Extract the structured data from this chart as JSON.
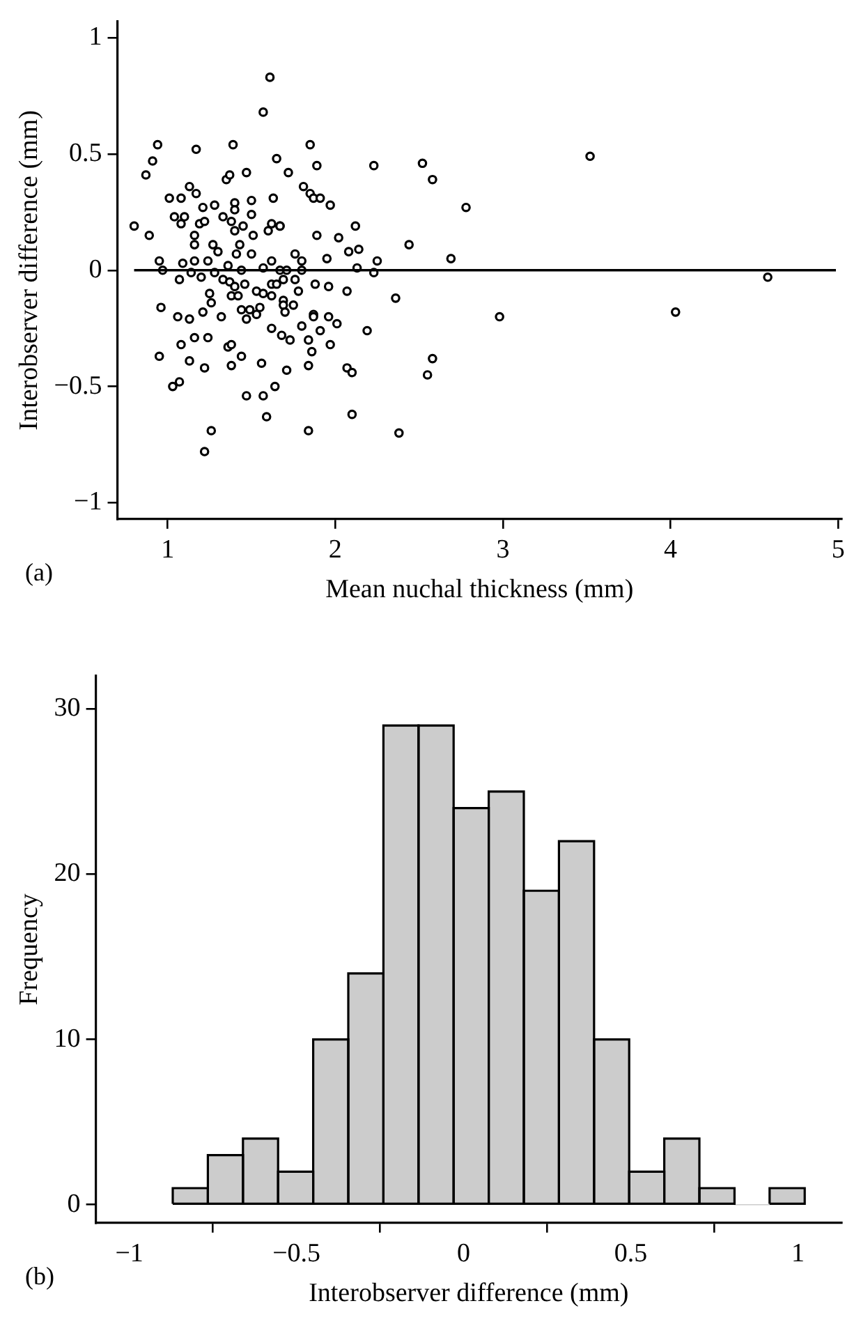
{
  "chart_data": [
    {
      "type": "scatter",
      "xlabel": "Mean nuchal thickness (mm)",
      "ylabel": "Interobserver difference (mm)",
      "annotations": [
        "(a)"
      ],
      "marker": "circle",
      "color": "#000000",
      "xlim": [
        0.7,
        5.02
      ],
      "ylim": [
        -1.07,
        1.07
      ],
      "xticks": [
        1,
        2,
        3,
        4,
        5
      ],
      "yticks": [
        -1,
        -0.5,
        0,
        0.5,
        1
      ],
      "ref_lines": [
        {
          "axis": "y",
          "value": 0,
          "color": "#000000"
        }
      ],
      "x": [
        0.8,
        0.89,
        0.87,
        0.91,
        0.94,
        0.95,
        0.97,
        0.96,
        0.95,
        1.03,
        1.07,
        1.01,
        1.04,
        1.08,
        1.1,
        1.08,
        1.07,
        1.06,
        1.08,
        1.09,
        1.13,
        1.17,
        1.17,
        1.13,
        1.13,
        1.16,
        1.16,
        1.14,
        1.16,
        1.16,
        1.21,
        1.19,
        1.22,
        1.2,
        1.21,
        1.24,
        1.22,
        1.26,
        1.22,
        1.24,
        1.28,
        1.27,
        1.3,
        1.25,
        1.26,
        1.28,
        1.32,
        1.33,
        1.35,
        1.37,
        1.36,
        1.38,
        1.38,
        1.39,
        1.4,
        1.4,
        1.38,
        1.4,
        1.43,
        1.41,
        1.36,
        1.33,
        1.37,
        1.4,
        1.38,
        1.42,
        1.44,
        1.47,
        1.44,
        1.47,
        1.47,
        1.45,
        1.44,
        1.46,
        1.49,
        1.5,
        1.5,
        1.51,
        1.5,
        1.53,
        1.53,
        1.55,
        1.57,
        1.57,
        1.56,
        1.57,
        1.61,
        1.57,
        1.59,
        1.64,
        1.6,
        1.63,
        1.62,
        1.62,
        1.62,
        1.62,
        1.62,
        1.65,
        1.67,
        1.67,
        1.65,
        1.67,
        1.69,
        1.68,
        1.69,
        1.69,
        1.71,
        1.7,
        1.72,
        1.71,
        1.73,
        1.76,
        1.76,
        1.75,
        1.81,
        1.8,
        1.8,
        1.8,
        1.78,
        1.85,
        1.85,
        1.87,
        1.89,
        1.89,
        1.91,
        1.97,
        1.87,
        1.87,
        1.84,
        1.91,
        1.96,
        1.88,
        1.96,
        1.84,
        1.84,
        1.86,
        1.97,
        1.95,
        2.02,
        2.01,
        2.07,
        2.07,
        2.1,
        2.1,
        2.12,
        2.08,
        2.14,
        2.13,
        2.19,
        2.23,
        2.23,
        2.25,
        2.36,
        2.38,
        2.44,
        2.52,
        2.58,
        2.78,
        2.69,
        2.98,
        2.58,
        2.55,
        3.52,
        4.03,
        4.58
      ],
      "values": [
        0.19,
        0.15,
        0.41,
        0.47,
        0.54,
        0.04,
        0.0,
        -0.16,
        -0.37,
        -0.5,
        -0.48,
        0.31,
        0.23,
        0.31,
        0.23,
        0.2,
        -0.04,
        -0.2,
        -0.32,
        0.03,
        0.36,
        0.33,
        0.52,
        -0.21,
        -0.39,
        -0.29,
        0.04,
        -0.01,
        0.15,
        0.11,
        0.27,
        0.2,
        0.21,
        -0.03,
        -0.18,
        -0.29,
        -0.42,
        -0.69,
        -0.78,
        0.04,
        0.28,
        0.11,
        0.08,
        -0.1,
        -0.14,
        -0.01,
        -0.2,
        0.23,
        0.39,
        0.41,
        -0.33,
        -0.32,
        -0.41,
        0.54,
        0.29,
        0.26,
        0.21,
        0.17,
        0.11,
        0.07,
        0.02,
        -0.04,
        -0.05,
        -0.07,
        -0.11,
        -0.11,
        -0.17,
        -0.21,
        -0.37,
        -0.54,
        0.42,
        0.19,
        0.0,
        -0.06,
        -0.17,
        0.3,
        0.24,
        0.15,
        0.07,
        -0.09,
        -0.19,
        -0.16,
        0.01,
        -0.1,
        -0.4,
        0.68,
        0.83,
        -0.54,
        -0.63,
        -0.5,
        0.17,
        0.31,
        0.2,
        0.04,
        -0.06,
        -0.11,
        -0.25,
        0.48,
        0.19,
        0.19,
        -0.06,
        0.0,
        -0.04,
        -0.28,
        -0.13,
        -0.15,
        0.0,
        -0.18,
        0.42,
        -0.43,
        -0.3,
        0.07,
        -0.04,
        -0.15,
        0.36,
        0.04,
        0.0,
        -0.24,
        -0.09,
        0.54,
        0.33,
        0.31,
        0.45,
        0.15,
        0.31,
        0.28,
        -0.19,
        -0.2,
        -0.3,
        -0.26,
        -0.2,
        -0.06,
        -0.07,
        -0.41,
        -0.69,
        -0.35,
        -0.32,
        0.05,
        0.14,
        -0.23,
        -0.09,
        -0.42,
        -0.44,
        -0.62,
        0.19,
        0.08,
        0.09,
        0.01,
        -0.26,
        0.45,
        -0.01,
        0.04,
        -0.12,
        -0.7,
        0.11,
        0.46,
        0.39,
        0.27,
        0.05,
        -0.2,
        -0.38,
        -0.45,
        0.49,
        -0.18,
        -0.03
      ]
    },
    {
      "type": "histogram",
      "xlabel": "Interobserver difference (mm)",
      "ylabel": "Frequency",
      "annotations": [
        "(b)"
      ],
      "color": "#cccccc",
      "xlim": [
        -1.1,
        1.13
      ],
      "ylim": [
        -1.1,
        32
      ],
      "xticks": [
        -1,
        -0.5,
        0,
        0.5,
        1
      ],
      "yticks": [
        0,
        10,
        20,
        30
      ],
      "bins": [
        -0.87,
        -0.765,
        -0.66,
        -0.555,
        -0.45,
        -0.345,
        -0.24,
        -0.135,
        -0.03,
        0.075,
        0.18,
        0.285,
        0.39,
        0.495,
        0.6,
        0.705,
        0.81,
        0.915,
        1.02
      ],
      "values": [
        1,
        3,
        4,
        2,
        10,
        14,
        29,
        29,
        24,
        25,
        19,
        22,
        10,
        2,
        4,
        1,
        0,
        1
      ]
    }
  ]
}
